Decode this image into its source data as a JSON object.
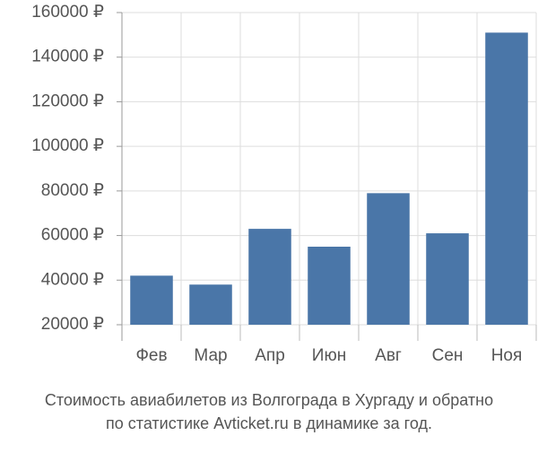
{
  "chart_data": {
    "type": "bar",
    "title_lines": [
      "Стоимость авиабилетов из Волгограда в Хургаду и обратно",
      "по статистике Avticket.ru в динамике за год."
    ],
    "categories": [
      "Фев",
      "Мар",
      "Апр",
      "Июн",
      "Авг",
      "Сен",
      "Ноя"
    ],
    "values": [
      42000,
      38000,
      63000,
      55000,
      79000,
      61000,
      151000
    ],
    "color": "#4a76a8",
    "ylim": [
      20000,
      160000
    ],
    "yticks": [
      {
        "value": 20000,
        "label": "20000 ₽"
      },
      {
        "value": 40000,
        "label": "40000 ₽"
      },
      {
        "value": 60000,
        "label": "60000 ₽"
      },
      {
        "value": 80000,
        "label": "80000 ₽"
      },
      {
        "value": 100000,
        "label": "100000 ₽"
      },
      {
        "value": 120000,
        "label": "120000 ₽"
      },
      {
        "value": 140000,
        "label": "140000 ₽"
      },
      {
        "value": 160000,
        "label": "160000 ₽"
      }
    ],
    "grid": true
  }
}
